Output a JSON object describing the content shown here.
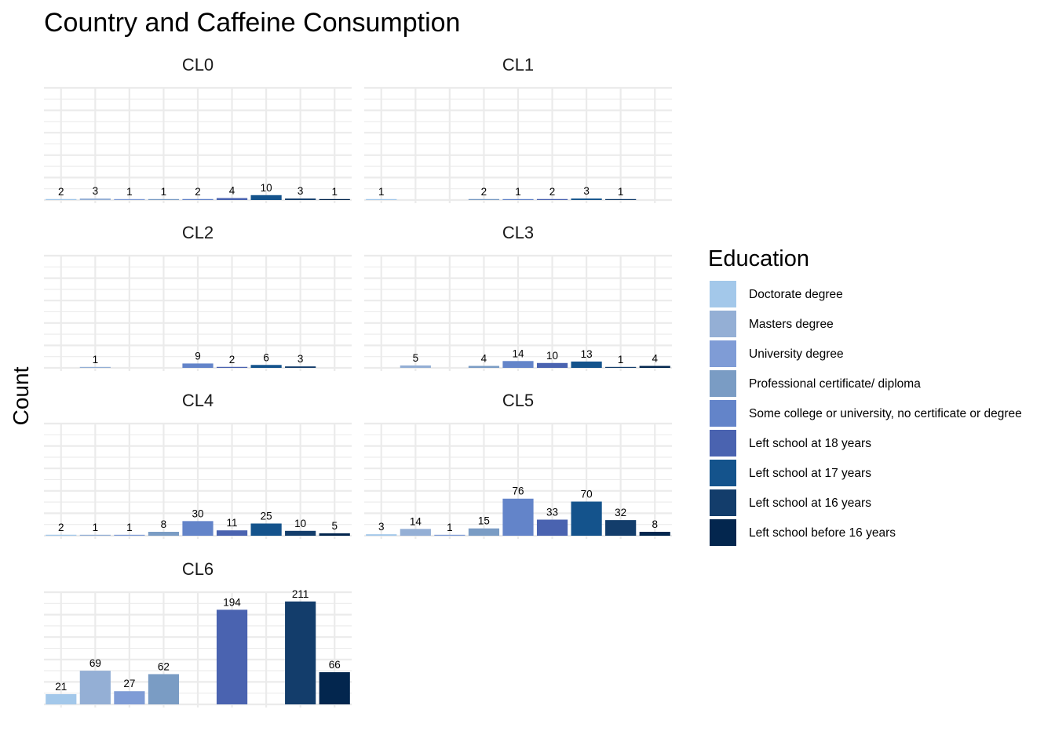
{
  "chart_data": {
    "type": "bar",
    "title": "Country and Caffeine Consumption",
    "ylabel": "Count",
    "xlabel": "",
    "legend": {
      "title": "Education",
      "position": "right",
      "entries": [
        {
          "name": "Doctorate degree",
          "color": "#a3c8ea"
        },
        {
          "name": "Masters degree",
          "color": "#94afd5"
        },
        {
          "name": "University degree",
          "color": "#7f9cd6"
        },
        {
          "name": "Professional certificate/ diploma",
          "color": "#7a9cc4"
        },
        {
          "name": "Some college or university, no certificate or degree",
          "color": "#6384c9"
        },
        {
          "name": "Left school at 18 years",
          "color": "#4a63b0"
        },
        {
          "name": "Left school at 17 years",
          "color": "#14538c"
        },
        {
          "name": "Left school at 16 years",
          "color": "#133d6b"
        },
        {
          "name": "Left school before 16 years",
          "color": "#03264e"
        }
      ]
    },
    "ylim": [
      0,
      230
    ],
    "grid": true,
    "facets": [
      {
        "name": "CL0",
        "values": [
          2,
          3,
          1,
          1,
          2,
          4,
          10,
          3,
          1
        ]
      },
      {
        "name": "CL1",
        "values": [
          1,
          null,
          null,
          2,
          1,
          2,
          3,
          1,
          null
        ]
      },
      {
        "name": "CL2",
        "values": [
          null,
          1,
          null,
          null,
          9,
          2,
          6,
          3,
          null
        ]
      },
      {
        "name": "CL3",
        "values": [
          null,
          5,
          null,
          4,
          14,
          10,
          13,
          1,
          4
        ]
      },
      {
        "name": "CL4",
        "values": [
          2,
          1,
          1,
          8,
          30,
          11,
          25,
          10,
          5
        ]
      },
      {
        "name": "CL5",
        "values": [
          3,
          14,
          1,
          15,
          76,
          33,
          70,
          32,
          8
        ]
      },
      {
        "name": "CL6",
        "values": [
          21,
          69,
          27,
          62,
          null,
          194,
          null,
          211,
          66
        ]
      }
    ],
    "bar_color_map": [
      [
        "#a3c8ea",
        "#94afd5",
        "#7f9cd6",
        "#7a9cc4",
        "#6384c9",
        "#4a63b0",
        "#14538c",
        "#133d6b",
        "#03264e"
      ],
      [
        "#a3c8ea",
        "#94afd5",
        "#7f9cd6",
        "#7a9cc4",
        "#6384c9",
        "#4a63b0",
        "#14538c",
        "#133d6b",
        "#03264e"
      ],
      [
        "#a3c8ea",
        "#94afd5",
        "#7f9cd6",
        "#7a9cc4",
        "#6384c9",
        "#4a63b0",
        "#14538c",
        "#133d6b",
        "#03264e"
      ],
      [
        "#a3c8ea",
        "#94afd5",
        "#7f9cd6",
        "#7a9cc4",
        "#6384c9",
        "#4a63b0",
        "#14538c",
        "#133d6b",
        "#03264e"
      ],
      [
        "#a3c8ea",
        "#94afd5",
        "#7f9cd6",
        "#7a9cc4",
        "#6384c9",
        "#4a63b0",
        "#14538c",
        "#133d6b",
        "#03264e"
      ],
      [
        "#a3c8ea",
        "#94afd5",
        "#7f9cd6",
        "#7a9cc4",
        "#6384c9",
        "#4a63b0",
        "#14538c",
        "#133d6b",
        "#03264e"
      ],
      [
        "#a3c8ea",
        "#94afd5",
        "#7f9cd6",
        "#7a9cc4",
        "#6384c9",
        "#4a63b0",
        "#14538c",
        "#133d6b",
        "#03264e"
      ]
    ]
  }
}
